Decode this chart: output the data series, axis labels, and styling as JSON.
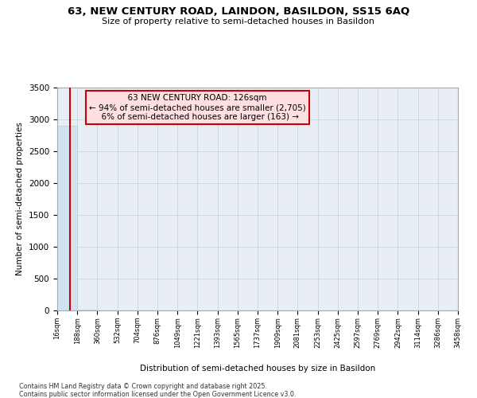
{
  "title_line1": "63, NEW CENTURY ROAD, LAINDON, BASILDON, SS15 6AQ",
  "title_line2": "Size of property relative to semi-detached houses in Basildon",
  "xlabel": "Distribution of semi-detached houses by size in Basildon",
  "ylabel": "Number of semi-detached properties",
  "property_label": "63 NEW CENTURY ROAD: 126sqm",
  "pct_smaller": 94,
  "count_smaller": "2,705",
  "pct_larger": 6,
  "count_larger": 163,
  "bin_edges": [
    16,
    188,
    360,
    532,
    704,
    876,
    1049,
    1221,
    1393,
    1565,
    1737,
    1909,
    2081,
    2253,
    2425,
    2597,
    2769,
    2942,
    3114,
    3286,
    3458
  ],
  "bar_heights": [
    2900,
    8,
    3,
    1,
    1,
    1,
    0,
    0,
    0,
    0,
    0,
    0,
    0,
    0,
    0,
    0,
    0,
    0,
    0,
    1
  ],
  "bar_color": "#d0e4f0",
  "bar_edge_color": "#b8cfe0",
  "vline_color": "#cc0000",
  "vline_x": 126,
  "box_facecolor": "#ffe0e0",
  "box_edgecolor": "#cc0000",
  "ylim": [
    0,
    3500
  ],
  "yticks": [
    0,
    500,
    1000,
    1500,
    2000,
    2500,
    3000,
    3500
  ],
  "grid_color": "#c8d4dc",
  "bg_color": "#ffffff",
  "plot_bg_color": "#e8eef4",
  "footer_line1": "Contains HM Land Registry data © Crown copyright and database right 2025.",
  "footer_line2": "Contains public sector information licensed under the Open Government Licence v3.0."
}
